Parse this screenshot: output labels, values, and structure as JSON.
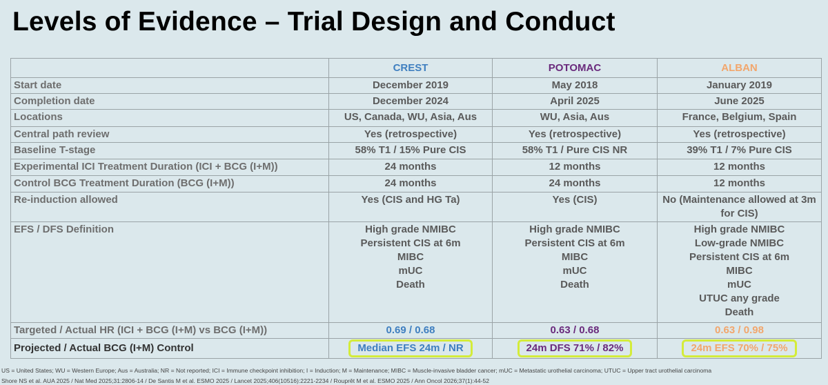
{
  "title": "Levels of Evidence – Trial Design and Conduct",
  "table": {
    "header": [
      "CREST",
      "POTOMAC",
      "ALBAN"
    ],
    "rows": [
      {
        "label": "Start date",
        "cells": [
          "December 2019",
          "May 2018",
          "January 2019"
        ]
      },
      {
        "label": "Completion date",
        "cells": [
          "December 2024",
          "April 2025",
          "June 2025"
        ]
      },
      {
        "label": "Locations",
        "cells": [
          "US, Canada, WU, Asia, Aus",
          "WU, Asia, Aus",
          "France, Belgium, Spain"
        ]
      },
      {
        "label": "Central path review",
        "cells": [
          "Yes (retrospective)",
          "Yes (retrospective)",
          "Yes (retrospective)"
        ]
      },
      {
        "label": "Baseline T-stage",
        "cells": [
          "58% T1 / 15% Pure CIS",
          "58% T1 / Pure CIS NR",
          "39% T1 / 7% Pure CIS"
        ]
      },
      {
        "label": "Experimental ICI Treatment Duration (ICI + BCG (I+M))",
        "cells": [
          "24 months",
          "12 months",
          "12 months"
        ]
      },
      {
        "label": "Control BCG Treatment Duration (BCG (I+M))",
        "cells": [
          "24 months",
          "24 months",
          "12 months"
        ]
      },
      {
        "label": "Re-induction allowed",
        "cells": [
          "Yes (CIS and HG Ta)",
          "Yes (CIS)",
          "No (Maintenance allowed at 3m for CIS)"
        ]
      },
      {
        "label": "EFS / DFS Definition",
        "cells": [
          [
            "High grade NMIBC",
            "Persistent CIS at 6m",
            "MIBC",
            "mUC",
            "Death"
          ],
          [
            "High grade NMIBC",
            "Persistent CIS at 6m",
            "MIBC",
            "mUC",
            "Death"
          ],
          [
            "High grade NMIBC",
            "Low-grade NMIBC",
            "Persistent CIS at 6m",
            "MIBC",
            "mUC",
            "UTUC any grade",
            "Death"
          ]
        ]
      },
      {
        "label": "Targeted / Actual HR (ICI + BCG (I+M) vs BCG (I+M))",
        "cells": [
          "0.69 / 0.68",
          "0.63 / 0.68",
          "0.63 / 0.98"
        ]
      },
      {
        "label": "Projected / Actual BCG (I+M) Control",
        "cells": [
          "Median EFS 24m / NR",
          "24m DFS 71% / 82%",
          "24m EFS 70% / 75%"
        ]
      }
    ]
  },
  "footnotes": [
    "US = United States; WU = Western Europe; Aus = Australia; NR = Not reported; ICI = Immune checkpoint inhibition; I = Induction; M = Maintenance; MIBC = Muscle-invasive bladder cancer; mUC = Metastatic urothelial carcinoma; UTUC = Upper tract urothelial carcinoma",
    "Shore NS et al. AUA 2025 / Nat Med 2025;31:2806-14 / De Santis M et al. ESMO 2025 / Lancet 2025;406(10516):2221-2234 / Rouprêt M et al. ESMO 2025 / Ann Oncol 2026;37(1):44-52"
  ]
}
